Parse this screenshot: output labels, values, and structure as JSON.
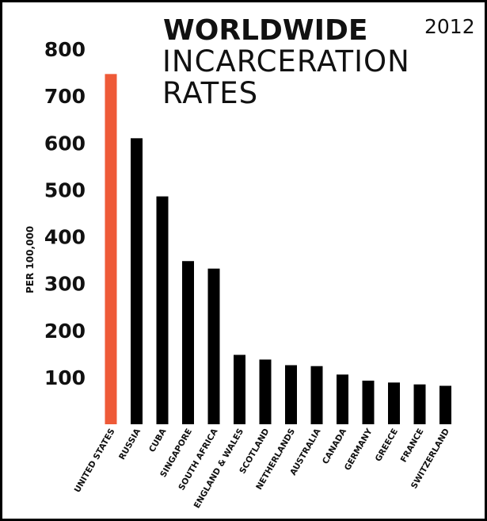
{
  "chart_data": {
    "type": "bar",
    "title_bold": "WORLDWIDE",
    "title_line2": "INCARCERATION",
    "title_line3": "RATES",
    "year": "2012",
    "ylabel": "PER 100,000",
    "xlabel": "",
    "ylim": [
      0,
      800
    ],
    "yticks": [
      100,
      200,
      300,
      400,
      500,
      600,
      700,
      800
    ],
    "grid": false,
    "legend": "none",
    "categories": [
      "UNITED STATES",
      "RUSSIA",
      "CUBA",
      "SINGAPORE",
      "SOUTH AFRICA",
      "ENGLAND & WALES",
      "SCOTLAND",
      "NETHERLANDS",
      "AUSTRALIA",
      "CANADA",
      "GERMANY",
      "GREECE",
      "FRANCE",
      "SWITZERLAND"
    ],
    "values": [
      747,
      610,
      486,
      348,
      332,
      148,
      138,
      126,
      124,
      106,
      93,
      89,
      85,
      82
    ],
    "colors": {
      "highlight": "#ee5a38",
      "bar": "#000000"
    }
  }
}
